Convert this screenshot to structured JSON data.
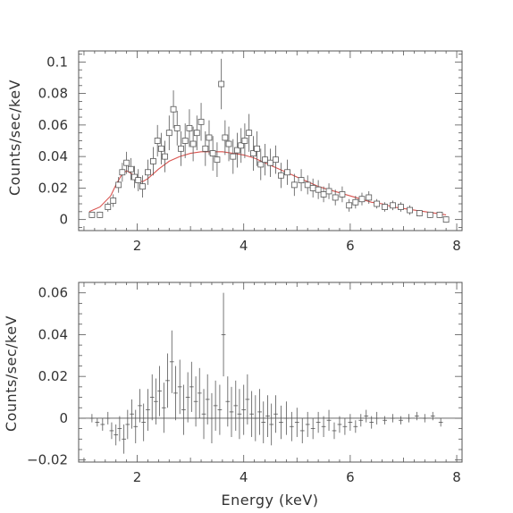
{
  "colors": {
    "data": "#555555",
    "model": "#d9534f",
    "axes": "#555555",
    "zero_line": "#555555"
  },
  "chart_data": [
    {
      "type": "scatter",
      "title": "",
      "xlabel": "",
      "ylabel": "Counts/sec/keV",
      "xlim": [
        0.9,
        8.1
      ],
      "ylim": [
        -0.007,
        0.107
      ],
      "xticks": [
        {
          "value": 2,
          "label": "2"
        },
        {
          "value": 4,
          "label": "4"
        },
        {
          "value": 6,
          "label": "6"
        },
        {
          "value": 8,
          "label": "8"
        }
      ],
      "yticks": [
        {
          "value": 0,
          "label": "0"
        },
        {
          "value": 0.02,
          "label": "0.02"
        },
        {
          "value": 0.04,
          "label": "0.04"
        },
        {
          "value": 0.06,
          "label": "0.06"
        },
        {
          "value": 0.08,
          "label": "0.08"
        },
        {
          "value": 0.1,
          "label": "0.1"
        }
      ],
      "series": [
        {
          "marker": "open-square",
          "x": [
            1.15,
            1.3,
            1.45,
            1.55,
            1.65,
            1.72,
            1.8,
            1.88,
            1.95,
            2.02,
            2.1,
            2.2,
            2.3,
            2.38,
            2.45,
            2.52,
            2.6,
            2.68,
            2.75,
            2.82,
            2.9,
            2.98,
            3.05,
            3.12,
            3.2,
            3.28,
            3.35,
            3.42,
            3.5,
            3.58,
            3.65,
            3.72,
            3.8,
            3.88,
            3.95,
            4.02,
            4.1,
            4.18,
            4.25,
            4.32,
            4.4,
            4.5,
            4.6,
            4.7,
            4.82,
            4.95,
            5.08,
            5.2,
            5.3,
            5.4,
            5.5,
            5.6,
            5.72,
            5.85,
            5.98,
            6.1,
            6.22,
            6.35,
            6.5,
            6.65,
            6.8,
            6.95,
            7.12,
            7.3,
            7.5,
            7.68,
            7.8
          ],
          "y": [
            0.003,
            0.003,
            0.008,
            0.012,
            0.022,
            0.03,
            0.036,
            0.032,
            0.027,
            0.025,
            0.021,
            0.03,
            0.037,
            0.05,
            0.045,
            0.04,
            0.055,
            0.07,
            0.058,
            0.045,
            0.05,
            0.058,
            0.048,
            0.055,
            0.062,
            0.045,
            0.052,
            0.042,
            0.038,
            0.086,
            0.052,
            0.048,
            0.04,
            0.044,
            0.047,
            0.05,
            0.055,
            0.042,
            0.045,
            0.035,
            0.038,
            0.036,
            0.038,
            0.028,
            0.03,
            0.022,
            0.025,
            0.022,
            0.02,
            0.019,
            0.016,
            0.018,
            0.014,
            0.016,
            0.009,
            0.011,
            0.013,
            0.014,
            0.01,
            0.008,
            0.009,
            0.008,
            0.006,
            0.004,
            0.003,
            0.003,
            0.0
          ],
          "yerr": [
            0.002,
            0.002,
            0.003,
            0.004,
            0.005,
            0.006,
            0.007,
            0.007,
            0.007,
            0.007,
            0.007,
            0.008,
            0.009,
            0.01,
            0.01,
            0.01,
            0.011,
            0.012,
            0.011,
            0.011,
            0.011,
            0.012,
            0.011,
            0.011,
            0.012,
            0.011,
            0.011,
            0.011,
            0.011,
            0.016,
            0.011,
            0.011,
            0.011,
            0.011,
            0.011,
            0.011,
            0.012,
            0.011,
            0.011,
            0.01,
            0.01,
            0.009,
            0.009,
            0.008,
            0.008,
            0.007,
            0.007,
            0.006,
            0.006,
            0.006,
            0.005,
            0.005,
            0.005,
            0.005,
            0.004,
            0.004,
            0.004,
            0.004,
            0.003,
            0.003,
            0.003,
            0.003,
            0.003,
            0.002,
            0.002,
            0.002,
            0.002
          ]
        },
        {
          "marker": "line",
          "x": [
            1.1,
            1.3,
            1.5,
            1.6,
            1.7,
            1.8,
            1.9,
            2.0,
            2.1,
            2.2,
            2.4,
            2.6,
            2.8,
            3.0,
            3.2,
            3.4,
            3.6,
            3.8,
            4.0,
            4.2,
            4.4,
            4.6,
            4.8,
            5.0,
            5.2,
            5.4,
            5.6,
            5.8,
            6.0,
            6.2,
            6.4,
            6.6,
            6.8,
            7.0,
            7.2,
            7.4,
            7.6,
            7.8
          ],
          "y": [
            0.005,
            0.008,
            0.015,
            0.022,
            0.028,
            0.031,
            0.029,
            0.025,
            0.024,
            0.026,
            0.032,
            0.037,
            0.04,
            0.042,
            0.043,
            0.043,
            0.043,
            0.042,
            0.041,
            0.039,
            0.036,
            0.033,
            0.03,
            0.027,
            0.024,
            0.021,
            0.019,
            0.017,
            0.015,
            0.013,
            0.011,
            0.01,
            0.008,
            0.007,
            0.006,
            0.005,
            0.004,
            0.003
          ]
        }
      ]
    },
    {
      "type": "scatter",
      "title": "",
      "xlabel": "Energy (keV)",
      "ylabel": "Counts/sec/keV",
      "xlim": [
        0.9,
        8.1
      ],
      "ylim": [
        -0.021,
        0.065
      ],
      "xticks": [
        {
          "value": 2,
          "label": "2"
        },
        {
          "value": 4,
          "label": "4"
        },
        {
          "value": 6,
          "label": "6"
        },
        {
          "value": 8,
          "label": "8"
        }
      ],
      "yticks": [
        {
          "value": -0.02,
          "label": "−0.02"
        },
        {
          "value": 0,
          "label": "0"
        },
        {
          "value": 0.02,
          "label": "0.02"
        },
        {
          "value": 0.04,
          "label": "0.04"
        },
        {
          "value": 0.06,
          "label": "0.06"
        }
      ],
      "series": [
        {
          "marker": "cross",
          "x": [
            1.15,
            1.25,
            1.35,
            1.45,
            1.52,
            1.6,
            1.67,
            1.75,
            1.82,
            1.9,
            1.97,
            2.05,
            2.12,
            2.2,
            2.28,
            2.35,
            2.42,
            2.5,
            2.57,
            2.65,
            2.72,
            2.8,
            2.87,
            2.95,
            3.02,
            3.1,
            3.17,
            3.25,
            3.32,
            3.4,
            3.47,
            3.55,
            3.62,
            3.7,
            3.77,
            3.85,
            3.92,
            4.0,
            4.07,
            4.15,
            4.22,
            4.3,
            4.37,
            4.45,
            4.52,
            4.6,
            4.7,
            4.8,
            4.9,
            5.0,
            5.1,
            5.2,
            5.3,
            5.4,
            5.5,
            5.6,
            5.7,
            5.8,
            5.9,
            6.0,
            6.1,
            6.2,
            6.3,
            6.4,
            6.5,
            6.65,
            6.8,
            6.95,
            7.1,
            7.25,
            7.4,
            7.55,
            7.7
          ],
          "y": [
            0.0,
            -0.002,
            -0.003,
            0.0,
            -0.006,
            -0.008,
            -0.005,
            -0.01,
            -0.003,
            0.002,
            -0.004,
            0.006,
            -0.002,
            0.004,
            0.01,
            0.008,
            0.013,
            0.005,
            0.018,
            0.027,
            0.012,
            0.015,
            0.004,
            0.01,
            0.015,
            0.008,
            0.012,
            0.002,
            0.009,
            0.0,
            0.006,
            0.004,
            0.04,
            0.008,
            0.003,
            0.006,
            0.002,
            0.004,
            0.009,
            0.002,
            0.0,
            0.003,
            -0.002,
            0.001,
            -0.003,
            0.002,
            -0.002,
            0.0,
            -0.004,
            -0.002,
            -0.006,
            -0.003,
            -0.005,
            -0.002,
            -0.004,
            -0.001,
            -0.006,
            -0.003,
            -0.004,
            -0.002,
            -0.004,
            -0.001,
            0.001,
            -0.002,
            0.0,
            -0.001,
            0.0,
            -0.001,
            0.0,
            0.001,
            0.0,
            0.001,
            -0.002
          ],
          "yerr": [
            0.002,
            0.002,
            0.003,
            0.003,
            0.004,
            0.005,
            0.006,
            0.007,
            0.007,
            0.007,
            0.008,
            0.008,
            0.009,
            0.01,
            0.011,
            0.011,
            0.012,
            0.012,
            0.013,
            0.015,
            0.013,
            0.013,
            0.012,
            0.012,
            0.012,
            0.012,
            0.012,
            0.012,
            0.012,
            0.012,
            0.012,
            0.012,
            0.02,
            0.012,
            0.012,
            0.012,
            0.012,
            0.012,
            0.012,
            0.011,
            0.011,
            0.011,
            0.01,
            0.01,
            0.01,
            0.009,
            0.008,
            0.008,
            0.007,
            0.007,
            0.006,
            0.006,
            0.005,
            0.005,
            0.005,
            0.005,
            0.004,
            0.004,
            0.004,
            0.004,
            0.003,
            0.003,
            0.003,
            0.003,
            0.003,
            0.002,
            0.002,
            0.002,
            0.002,
            0.002,
            0.002,
            0.002,
            0.002
          ],
          "xerr": 0.04
        }
      ]
    }
  ]
}
